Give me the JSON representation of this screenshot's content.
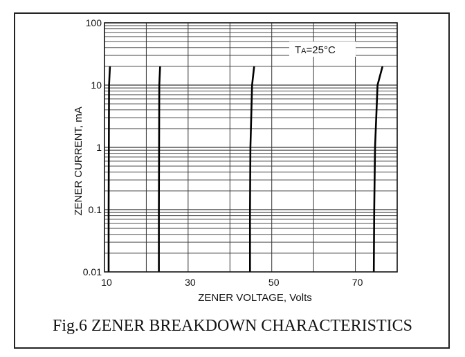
{
  "chart_data": {
    "type": "line",
    "title": "",
    "xlabel": "ZENER VOLTAGE, Volts",
    "ylabel": "ZENER CURRENT, mA",
    "x_scale": "linear",
    "y_scale": "log",
    "xlim": [
      10,
      80
    ],
    "ylim": [
      0.01,
      100
    ],
    "x_ticks": [
      "10",
      "30",
      "50",
      "70"
    ],
    "y_ticks": [
      "0.01",
      "0.1",
      "1",
      "10",
      "100"
    ],
    "grid": true,
    "annotation": {
      "main": "T",
      "sub": "A",
      "rest": "=25°C"
    },
    "series": [
      {
        "x": [
          11.0,
          11.0,
          11.05,
          11.1,
          11.3
        ],
        "y": [
          0.01,
          0.1,
          1,
          10,
          20
        ]
      },
      {
        "x": [
          23.0,
          23.0,
          23.05,
          23.1,
          23.3
        ],
        "y": [
          0.01,
          0.1,
          1,
          10,
          20
        ]
      },
      {
        "x": [
          44.8,
          44.8,
          44.9,
          45.3,
          45.8
        ],
        "y": [
          0.01,
          0.1,
          1,
          10,
          20
        ]
      },
      {
        "x": [
          74.4,
          74.5,
          74.7,
          75.3,
          76.5
        ],
        "y": [
          0.01,
          0.1,
          1,
          10,
          20
        ]
      }
    ],
    "line_color": "#000000"
  },
  "caption": "Fig.6 ZENER BREAKDOWN CHARACTERISTICS"
}
